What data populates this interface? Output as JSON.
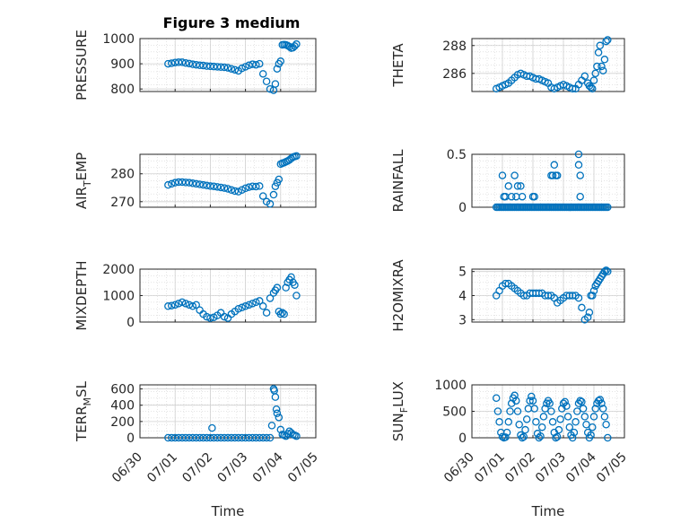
{
  "figure": {
    "title": "Figure 3 medium"
  },
  "chart_data": [
    {
      "type": "scatter",
      "ylabel": "PRESSURE",
      "title": "Figure 3 medium",
      "ylim": [
        790,
        1000
      ],
      "yticks": [
        800,
        900,
        1000
      ],
      "xlim": [
        "06/30",
        "07/05"
      ],
      "xticks": [
        "06/30",
        "07/01",
        "07/02",
        "07/03",
        "07/04",
        "07/05"
      ],
      "xlabel": "",
      "grid": "on",
      "minor_grid": "on",
      "x": [
        0.8,
        0.9,
        1.0,
        1.1,
        1.2,
        1.3,
        1.4,
        1.5,
        1.6,
        1.7,
        1.8,
        1.9,
        2.0,
        2.1,
        2.2,
        2.3,
        2.4,
        2.5,
        2.6,
        2.7,
        2.8,
        2.9,
        3.0,
        3.1,
        3.2,
        3.3,
        3.4,
        3.5,
        3.6,
        3.7,
        3.8,
        3.85,
        3.9,
        3.95,
        4.0,
        4.05,
        4.1,
        4.15,
        4.2,
        4.25,
        4.3,
        4.35,
        4.4,
        4.45
      ],
      "y": [
        900,
        902,
        905,
        906,
        906,
        903,
        901,
        898,
        896,
        894,
        893,
        891,
        890,
        889,
        888,
        887,
        886,
        884,
        880,
        876,
        872,
        882,
        888,
        894,
        898,
        896,
        900,
        860,
        830,
        800,
        795,
        820,
        880,
        900,
        910,
        975,
        976,
        975,
        972,
        968,
        962,
        964,
        970,
        978
      ]
    },
    {
      "type": "scatter",
      "ylabel": "THETA",
      "ylim": [
        284.7,
        288.5
      ],
      "yticks": [
        286,
        288
      ],
      "xlim": [
        "06/30",
        "07/05"
      ],
      "xticks": [
        "06/30",
        "07/01",
        "07/02",
        "07/03",
        "07/04",
        "07/05"
      ],
      "xlabel": "",
      "grid": "on",
      "minor_grid": "on",
      "x": [
        0.8,
        0.9,
        1.0,
        1.1,
        1.2,
        1.3,
        1.4,
        1.5,
        1.6,
        1.7,
        1.8,
        1.9,
        2.0,
        2.1,
        2.2,
        2.3,
        2.4,
        2.5,
        2.6,
        2.7,
        2.8,
        2.9,
        3.0,
        3.1,
        3.2,
        3.3,
        3.4,
        3.5,
        3.6,
        3.7,
        3.8,
        3.85,
        3.9,
        3.95,
        4.0,
        4.05,
        4.1,
        4.15,
        4.2,
        4.25,
        4.3,
        4.35,
        4.4,
        4.45
      ],
      "y": [
        284.9,
        285.0,
        285.1,
        285.2,
        285.3,
        285.5,
        285.7,
        285.9,
        286.0,
        285.9,
        285.8,
        285.8,
        285.7,
        285.6,
        285.6,
        285.5,
        285.4,
        285.3,
        285.0,
        284.9,
        285.0,
        285.1,
        285.2,
        285.1,
        285.0,
        284.9,
        284.9,
        285.2,
        285.5,
        285.8,
        285.3,
        285.1,
        285.0,
        284.9,
        285.5,
        286.0,
        286.5,
        287.5,
        288.0,
        286.5,
        286.2,
        287.0,
        288.3,
        288.4
      ]
    },
    {
      "type": "scatter",
      "ylabel": "AIR_TEMP",
      "ylim": [
        268,
        287
      ],
      "yticks": [
        270,
        280
      ],
      "xlim": [
        "06/30",
        "07/05"
      ],
      "xticks": [
        "06/30",
        "07/01",
        "07/02",
        "07/03",
        "07/04",
        "07/05"
      ],
      "xlabel": "",
      "grid": "on",
      "minor_grid": "on",
      "x": [
        0.8,
        0.9,
        1.0,
        1.1,
        1.2,
        1.3,
        1.4,
        1.5,
        1.6,
        1.7,
        1.8,
        1.9,
        2.0,
        2.1,
        2.2,
        2.3,
        2.4,
        2.5,
        2.6,
        2.7,
        2.8,
        2.9,
        3.0,
        3.1,
        3.2,
        3.3,
        3.4,
        3.5,
        3.6,
        3.7,
        3.8,
        3.85,
        3.9,
        3.95,
        4.0,
        4.05,
        4.1,
        4.15,
        4.2,
        4.25,
        4.3,
        4.35,
        4.4,
        4.45
      ],
      "y": [
        276.0,
        276.4,
        276.8,
        277.0,
        277.0,
        276.9,
        276.8,
        276.6,
        276.4,
        276.2,
        276.0,
        275.8,
        275.6,
        275.5,
        275.3,
        275.1,
        274.9,
        274.6,
        274.2,
        273.8,
        273.6,
        274.2,
        274.8,
        275.2,
        275.5,
        275.4,
        275.6,
        272.0,
        270.0,
        269.2,
        272.5,
        275.5,
        276.8,
        278.0,
        283.5,
        283.8,
        284.0,
        284.3,
        284.6,
        285.0,
        285.5,
        286.0,
        286.2,
        286.4
      ]
    },
    {
      "type": "scatter",
      "ylabel": "RAINFALL",
      "ylim": [
        0,
        0.5
      ],
      "yticks": [
        0,
        0.5
      ],
      "xlim": [
        "06/30",
        "07/05"
      ],
      "xticks": [
        "06/30",
        "07/01",
        "07/02",
        "07/03",
        "07/04",
        "07/05"
      ],
      "xlabel": "",
      "grid": "on",
      "minor_grid": "on",
      "x": [
        0.8,
        0.85,
        0.9,
        0.95,
        1.0,
        1.05,
        1.1,
        1.15,
        1.2,
        1.25,
        1.3,
        1.35,
        1.4,
        1.45,
        1.5,
        1.55,
        1.6,
        1.65,
        1.7,
        1.75,
        1.8,
        1.85,
        1.9,
        1.95,
        2.0,
        2.05,
        2.1,
        2.15,
        2.2,
        2.25,
        2.3,
        2.35,
        2.4,
        2.45,
        2.5,
        2.55,
        2.6,
        2.65,
        2.7,
        2.75,
        2.8,
        2.85,
        2.9,
        2.95,
        3.0,
        3.05,
        3.1,
        3.15,
        3.2,
        3.25,
        3.3,
        3.35,
        3.4,
        3.45,
        3.5,
        3.55,
        3.6,
        3.65,
        3.7,
        3.75,
        3.8,
        3.85,
        3.9,
        3.95,
        4.0,
        4.05,
        4.1,
        4.15,
        4.2,
        4.25,
        4.3,
        4.35,
        4.4,
        4.45,
        1.0,
        1.05,
        1.1,
        1.2,
        1.3,
        1.4,
        1.45,
        1.5,
        1.6,
        1.65,
        2.0,
        2.05,
        2.6,
        2.65,
        2.7,
        2.75,
        2.8,
        3.5,
        3.5,
        3.55,
        3.55
      ],
      "y": [
        0,
        0,
        0,
        0,
        0,
        0,
        0,
        0,
        0,
        0,
        0,
        0,
        0,
        0,
        0,
        0,
        0,
        0,
        0,
        0,
        0,
        0,
        0,
        0,
        0,
        0,
        0,
        0,
        0,
        0,
        0,
        0,
        0,
        0,
        0,
        0,
        0,
        0,
        0,
        0,
        0,
        0,
        0,
        0,
        0,
        0,
        0,
        0,
        0,
        0,
        0,
        0,
        0,
        0,
        0,
        0,
        0,
        0,
        0,
        0,
        0,
        0,
        0,
        0,
        0,
        0,
        0,
        0,
        0,
        0,
        0,
        0,
        0,
        0,
        0.3,
        0.1,
        0.1,
        0.2,
        0.1,
        0.3,
        0.1,
        0.2,
        0.2,
        0.1,
        0.1,
        0.1,
        0.3,
        0.3,
        0.4,
        0.3,
        0.3,
        0.5,
        0.4,
        0.3,
        0.1
      ]
    },
    {
      "type": "scatter",
      "ylabel": "MIXDEPTH",
      "ylim": [
        0,
        2000
      ],
      "yticks": [
        0,
        1000,
        2000
      ],
      "xlim": [
        "06/30",
        "07/05"
      ],
      "xticks": [
        "06/30",
        "07/01",
        "07/02",
        "07/03",
        "07/04",
        "07/05"
      ],
      "xlabel": "",
      "grid": "on",
      "minor_grid": "on",
      "x": [
        0.8,
        0.9,
        1.0,
        1.1,
        1.2,
        1.3,
        1.4,
        1.5,
        1.6,
        1.7,
        1.8,
        1.9,
        2.0,
        2.1,
        2.2,
        2.3,
        2.4,
        2.5,
        2.6,
        2.7,
        2.8,
        2.9,
        3.0,
        3.1,
        3.2,
        3.3,
        3.4,
        3.5,
        3.6,
        3.7,
        3.8,
        3.85,
        3.9,
        3.95,
        4.0,
        4.05,
        4.1,
        4.15,
        4.2,
        4.25,
        4.3,
        4.35,
        4.4,
        4.45
      ],
      "y": [
        600,
        620,
        650,
        700,
        750,
        700,
        650,
        600,
        650,
        450,
        300,
        200,
        150,
        180,
        250,
        350,
        200,
        150,
        300,
        400,
        500,
        550,
        600,
        650,
        700,
        750,
        800,
        600,
        350,
        900,
        1100,
        1200,
        1300,
        400,
        300,
        350,
        300,
        1300,
        1500,
        1600,
        1700,
        1500,
        1400,
        1000
      ]
    },
    {
      "type": "scatter",
      "ylabel": "H2OMIXRA",
      "ylim": [
        2.9,
        5.1
      ],
      "yticks": [
        3,
        4,
        5
      ],
      "xlim": [
        "06/30",
        "07/05"
      ],
      "xticks": [
        "06/30",
        "07/01",
        "07/02",
        "07/03",
        "07/04",
        "07/05"
      ],
      "xlabel": "",
      "grid": "on",
      "minor_grid": "on",
      "x": [
        0.8,
        0.9,
        1.0,
        1.1,
        1.2,
        1.3,
        1.4,
        1.5,
        1.6,
        1.7,
        1.8,
        1.9,
        2.0,
        2.1,
        2.2,
        2.3,
        2.4,
        2.5,
        2.6,
        2.7,
        2.8,
        2.9,
        3.0,
        3.1,
        3.2,
        3.3,
        3.4,
        3.5,
        3.6,
        3.7,
        3.8,
        3.85,
        3.9,
        3.95,
        4.0,
        4.05,
        4.1,
        4.15,
        4.2,
        4.25,
        4.3,
        4.35,
        4.4,
        4.45
      ],
      "y": [
        4.0,
        4.2,
        4.4,
        4.5,
        4.5,
        4.4,
        4.3,
        4.2,
        4.1,
        4.0,
        4.0,
        4.1,
        4.1,
        4.1,
        4.1,
        4.1,
        4.0,
        4.0,
        4.0,
        3.9,
        3.7,
        3.8,
        3.9,
        4.0,
        4.0,
        4.0,
        4.0,
        3.9,
        3.5,
        3.0,
        3.1,
        3.3,
        4.0,
        4.0,
        4.2,
        4.4,
        4.5,
        4.6,
        4.7,
        4.8,
        4.9,
        5.0,
        5.05,
        5.0
      ]
    },
    {
      "type": "scatter",
      "ylabel": "TERR_MSL",
      "ylim": [
        0,
        650
      ],
      "yticks": [
        0,
        200,
        400,
        600
      ],
      "xlim": [
        "06/30",
        "07/05"
      ],
      "xticks": [
        "06/30",
        "07/01",
        "07/02",
        "07/03",
        "07/04",
        "07/05"
      ],
      "xlabel": "Time",
      "grid": "on",
      "minor_grid": "on",
      "x": [
        0.8,
        0.9,
        1.0,
        1.1,
        1.2,
        1.3,
        1.4,
        1.5,
        1.6,
        1.7,
        1.8,
        1.9,
        2.0,
        2.1,
        2.2,
        2.3,
        2.4,
        2.5,
        2.6,
        2.7,
        2.8,
        2.9,
        3.0,
        3.1,
        3.2,
        3.3,
        3.4,
        3.5,
        3.6,
        3.7,
        2.05,
        3.75,
        3.8,
        3.82,
        3.85,
        3.88,
        3.9,
        3.95,
        4.0,
        4.05,
        4.1,
        4.15,
        4.2,
        4.25,
        4.3,
        4.35,
        4.4,
        4.45
      ],
      "y": [
        0,
        0,
        0,
        0,
        0,
        0,
        0,
        0,
        0,
        0,
        0,
        0,
        0,
        0,
        0,
        0,
        0,
        0,
        0,
        0,
        0,
        0,
        0,
        0,
        0,
        0,
        0,
        0,
        0,
        0,
        120,
        150,
        600,
        580,
        500,
        350,
        300,
        250,
        100,
        40,
        30,
        20,
        50,
        80,
        60,
        40,
        30,
        20
      ]
    },
    {
      "type": "scatter",
      "ylabel": "SUN_FLUX",
      "ylim": [
        0,
        1000
      ],
      "yticks": [
        0,
        500,
        1000
      ],
      "xlim": [
        "06/30",
        "07/05"
      ],
      "xticks": [
        "06/30",
        "07/01",
        "07/02",
        "07/03",
        "07/04",
        "07/05"
      ],
      "xlabel": "Time",
      "grid": "on",
      "minor_grid": "on",
      "x": [
        0.8,
        0.85,
        0.9,
        0.95,
        1.0,
        1.05,
        1.1,
        1.15,
        1.2,
        1.25,
        1.3,
        1.35,
        1.4,
        1.45,
        1.5,
        1.55,
        1.6,
        1.65,
        1.7,
        1.75,
        1.8,
        1.85,
        1.9,
        1.95,
        2.0,
        2.05,
        2.1,
        2.15,
        2.2,
        2.25,
        2.3,
        2.35,
        2.4,
        2.45,
        2.5,
        2.55,
        2.6,
        2.65,
        2.7,
        2.75,
        2.8,
        2.85,
        2.9,
        2.95,
        3.0,
        3.05,
        3.1,
        3.15,
        3.2,
        3.25,
        3.3,
        3.35,
        3.4,
        3.45,
        3.5,
        3.55,
        3.6,
        3.65,
        3.7,
        3.75,
        3.8,
        3.85,
        3.9,
        3.95,
        4.0,
        4.05,
        4.1,
        4.15,
        4.2,
        4.25,
        4.3,
        4.35,
        4.4,
        4.45
      ],
      "y": [
        750,
        500,
        300,
        100,
        20,
        0,
        10,
        100,
        300,
        500,
        650,
        750,
        800,
        700,
        500,
        250,
        50,
        0,
        20,
        150,
        350,
        550,
        700,
        780,
        700,
        550,
        300,
        80,
        0,
        30,
        200,
        400,
        550,
        650,
        700,
        650,
        500,
        300,
        100,
        0,
        20,
        150,
        350,
        550,
        650,
        680,
        600,
        400,
        200,
        50,
        0,
        100,
        300,
        500,
        650,
        700,
        680,
        550,
        400,
        250,
        100,
        0,
        50,
        200,
        400,
        550,
        650,
        700,
        720,
        650,
        550,
        400,
        250,
        0
      ]
    }
  ]
}
